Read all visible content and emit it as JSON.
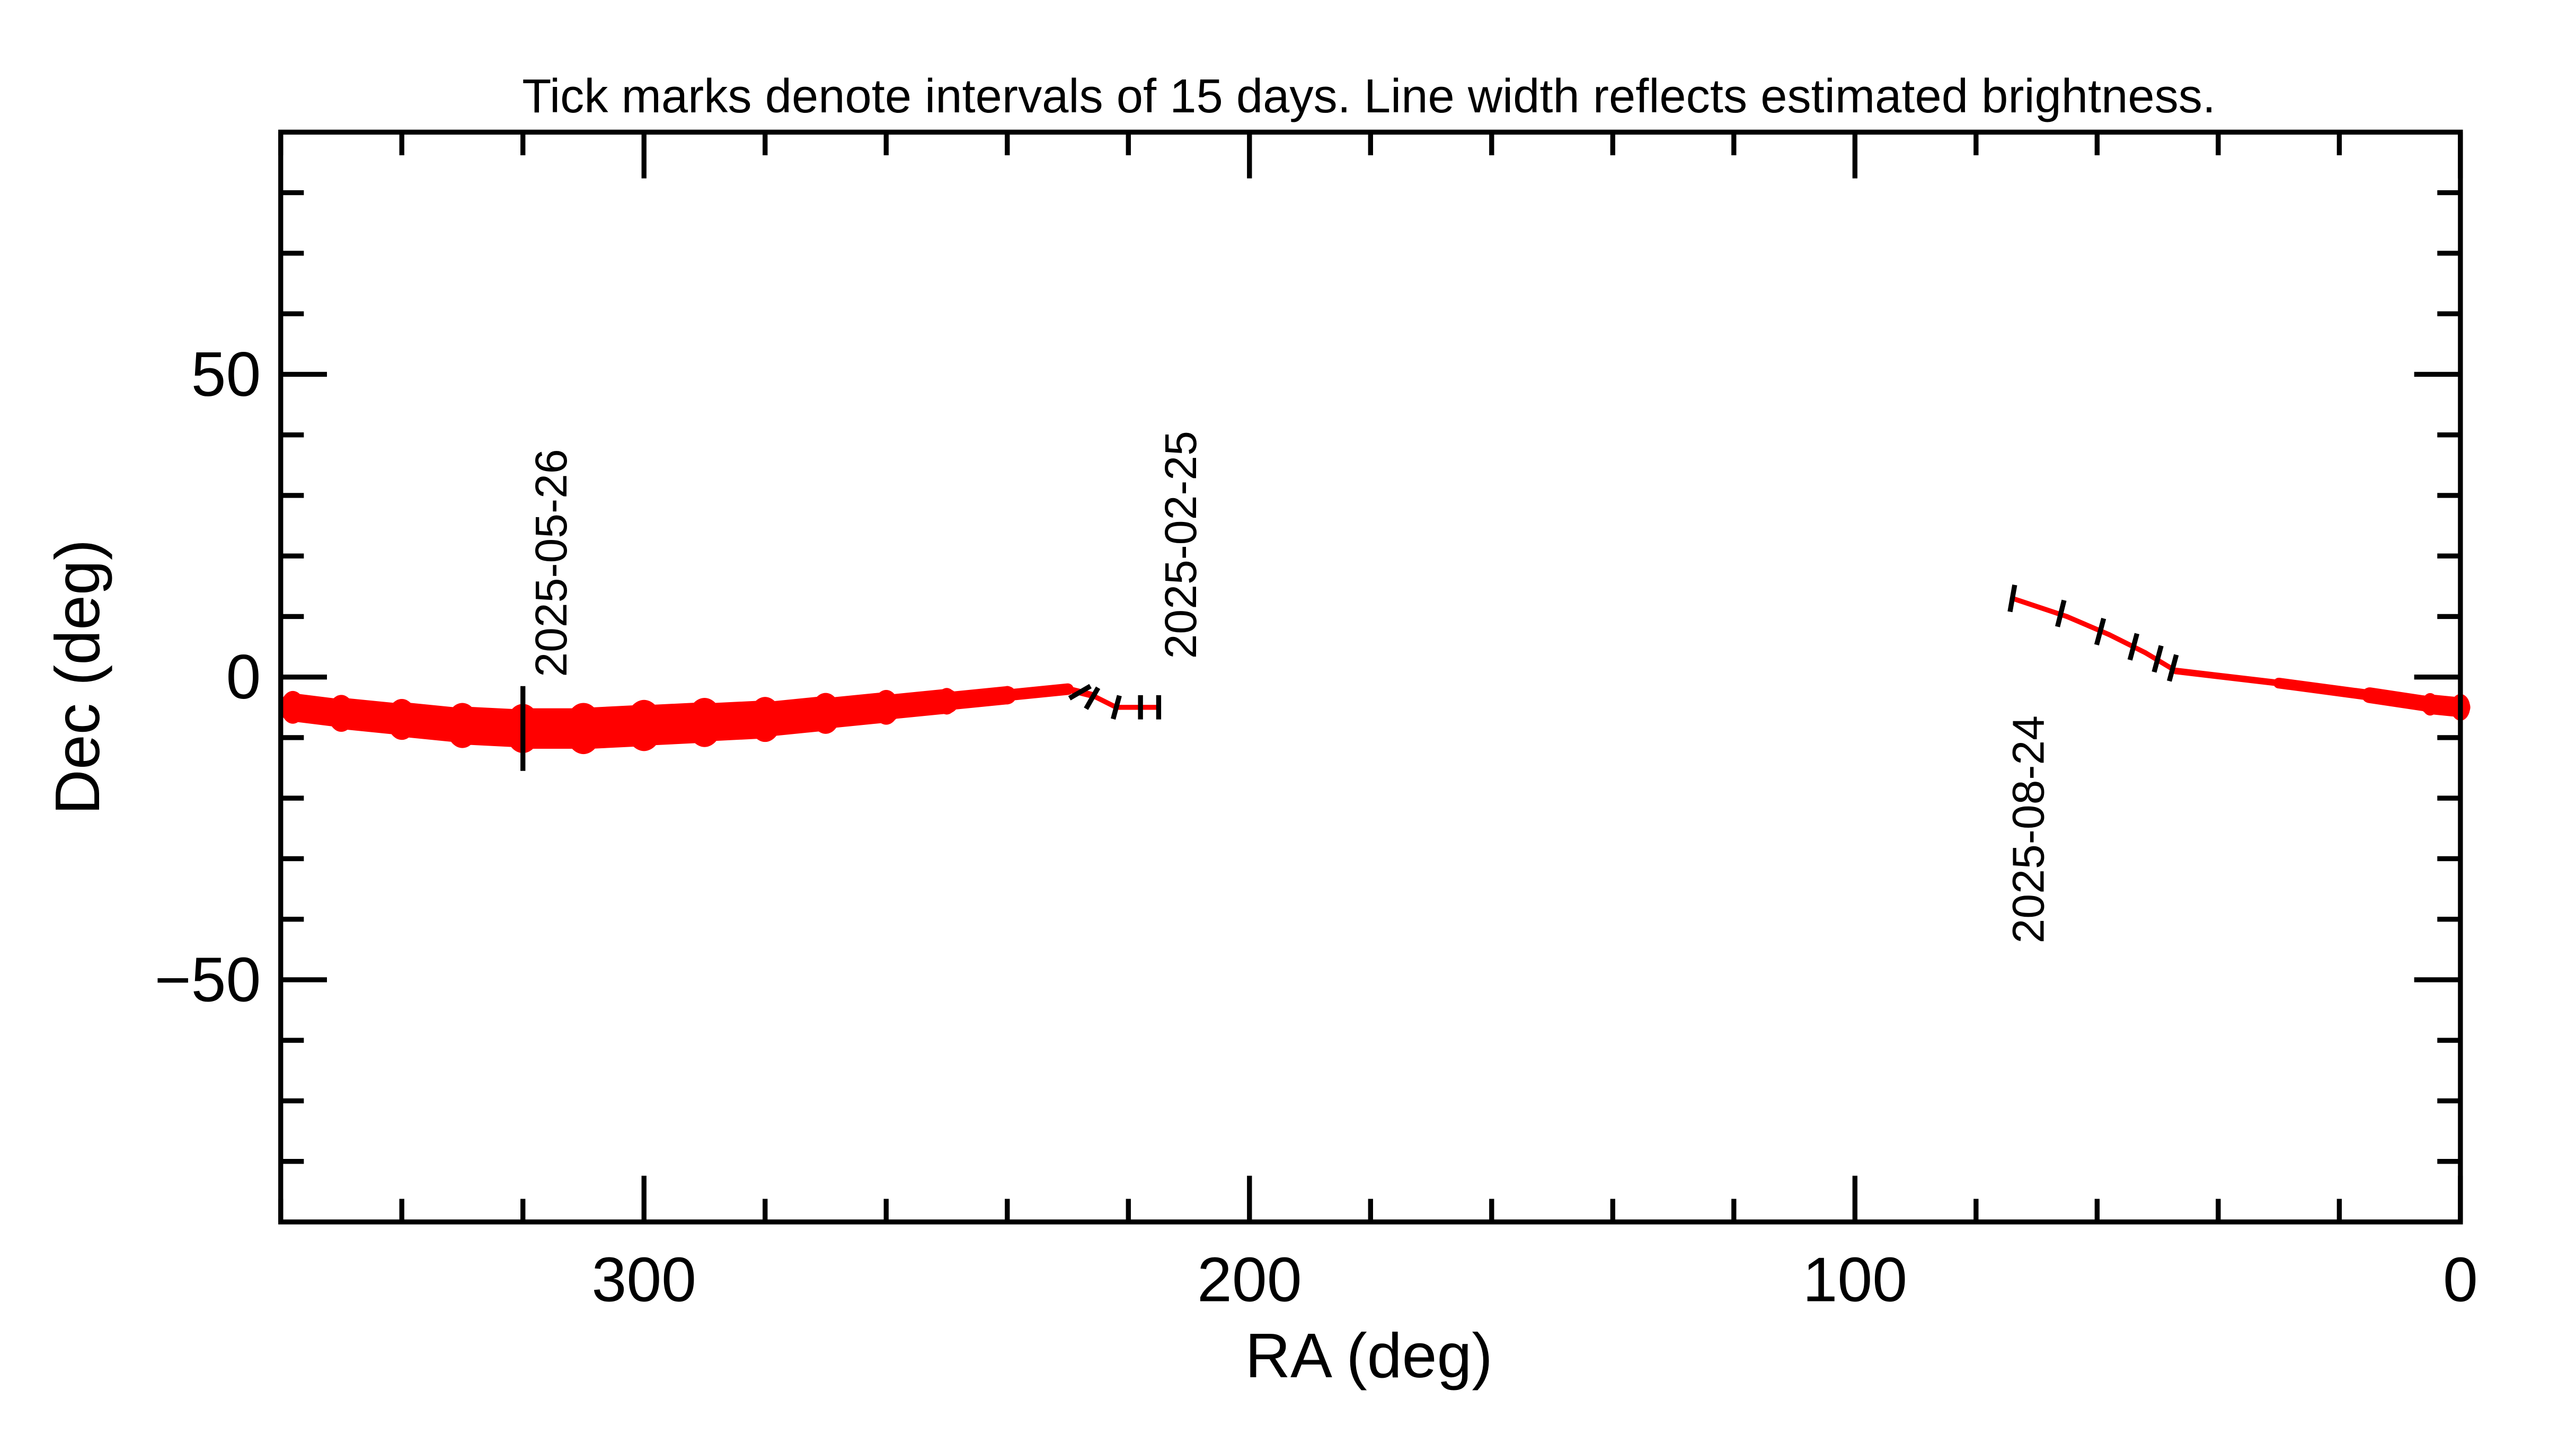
{
  "chart_data": {
    "type": "line",
    "title": "Tick marks denote intervals of 15 days.  Line width reflects estimated brightness.",
    "xlabel": "RA (deg)",
    "ylabel": "Dec (deg)",
    "xlim": [
      360,
      0
    ],
    "ylim": [
      -90,
      90
    ],
    "x_major_ticks": [
      300,
      200,
      100,
      0
    ],
    "x_tick_labels": [
      "300",
      "200",
      "100",
      "0"
    ],
    "x_minor_step": 20,
    "y_major_ticks": [
      50,
      0,
      -50
    ],
    "y_tick_labels": [
      "50",
      "0",
      "−50"
    ],
    "y_minor_step": 10,
    "grid": false,
    "track_color": "#ff0000",
    "series": [
      {
        "name": "track-segment-left",
        "points": [
          {
            "ra": 358,
            "dec": -5,
            "brightness": 16
          },
          {
            "ra": 350,
            "dec": -6,
            "brightness": 18
          },
          {
            "ra": 340,
            "dec": -7,
            "brightness": 20
          },
          {
            "ra": 330,
            "dec": -8,
            "brightness": 22
          },
          {
            "ra": 320,
            "dec": -8.5,
            "brightness": 24
          },
          {
            "ra": 310,
            "dec": -8.5,
            "brightness": 25
          },
          {
            "ra": 300,
            "dec": -8,
            "brightness": 25
          },
          {
            "ra": 290,
            "dec": -7.5,
            "brightness": 24
          },
          {
            "ra": 280,
            "dec": -7,
            "brightness": 22
          },
          {
            "ra": 270,
            "dec": -6,
            "brightness": 20
          },
          {
            "ra": 260,
            "dec": -5,
            "brightness": 17
          },
          {
            "ra": 250,
            "dec": -4,
            "brightness": 13
          },
          {
            "ra": 240,
            "dec": -3,
            "brightness": 9
          },
          {
            "ra": 230,
            "dec": -2,
            "brightness": 5
          },
          {
            "ra": 226,
            "dec": -3,
            "brightness": 3
          },
          {
            "ra": 222,
            "dec": -5,
            "brightness": 3
          },
          {
            "ra": 215,
            "dec": -5,
            "brightness": 3
          }
        ]
      },
      {
        "name": "track-segment-right",
        "points": [
          {
            "ra": 74,
            "dec": 13,
            "brightness": 3
          },
          {
            "ra": 65,
            "dec": 10,
            "brightness": 3
          },
          {
            "ra": 58,
            "dec": 7,
            "brightness": 3
          },
          {
            "ra": 52,
            "dec": 4,
            "brightness": 3
          },
          {
            "ra": 47,
            "dec": 1,
            "brightness": 3
          },
          {
            "ra": 30,
            "dec": -1,
            "brightness": 5
          },
          {
            "ra": 15,
            "dec": -3,
            "brightness": 8
          },
          {
            "ra": 5,
            "dec": -4.5,
            "brightness": 11
          },
          {
            "ra": 0,
            "dec": -5,
            "brightness": 13
          }
        ]
      }
    ],
    "date_ticks": [
      {
        "ra": 320,
        "dec": -8.5,
        "len": 14,
        "angle": 90
      },
      {
        "ra": 228,
        "dec": -2.5,
        "len": 4,
        "angle": 30
      },
      {
        "ra": 226,
        "dec": -3.5,
        "len": 4,
        "angle": 60
      },
      {
        "ra": 222,
        "dec": -5,
        "len": 4,
        "angle": 75
      },
      {
        "ra": 218,
        "dec": -5,
        "len": 4,
        "angle": 90
      },
      {
        "ra": 215,
        "dec": -5,
        "len": 4,
        "angle": 90
      },
      {
        "ra": 74,
        "dec": 13,
        "len": 4.5,
        "angle": 80
      },
      {
        "ra": 66,
        "dec": 10.5,
        "len": 4.5,
        "angle": 76
      },
      {
        "ra": 59.5,
        "dec": 7.5,
        "len": 4.5,
        "angle": 75
      },
      {
        "ra": 54,
        "dec": 5,
        "len": 4.5,
        "angle": 75
      },
      {
        "ra": 50,
        "dec": 3,
        "len": 4.5,
        "angle": 75
      },
      {
        "ra": 47.5,
        "dec": 1.5,
        "len": 4.5,
        "angle": 75
      }
    ],
    "annotations": [
      {
        "text": "2025-05-26",
        "ra": 315,
        "dec": 0,
        "anchor": "start"
      },
      {
        "text": "2025-02-25",
        "ra": 211,
        "dec": 3,
        "anchor": "start"
      },
      {
        "text": "2025-08-24",
        "ra": 71,
        "dec": -44,
        "anchor": "start"
      }
    ]
  }
}
